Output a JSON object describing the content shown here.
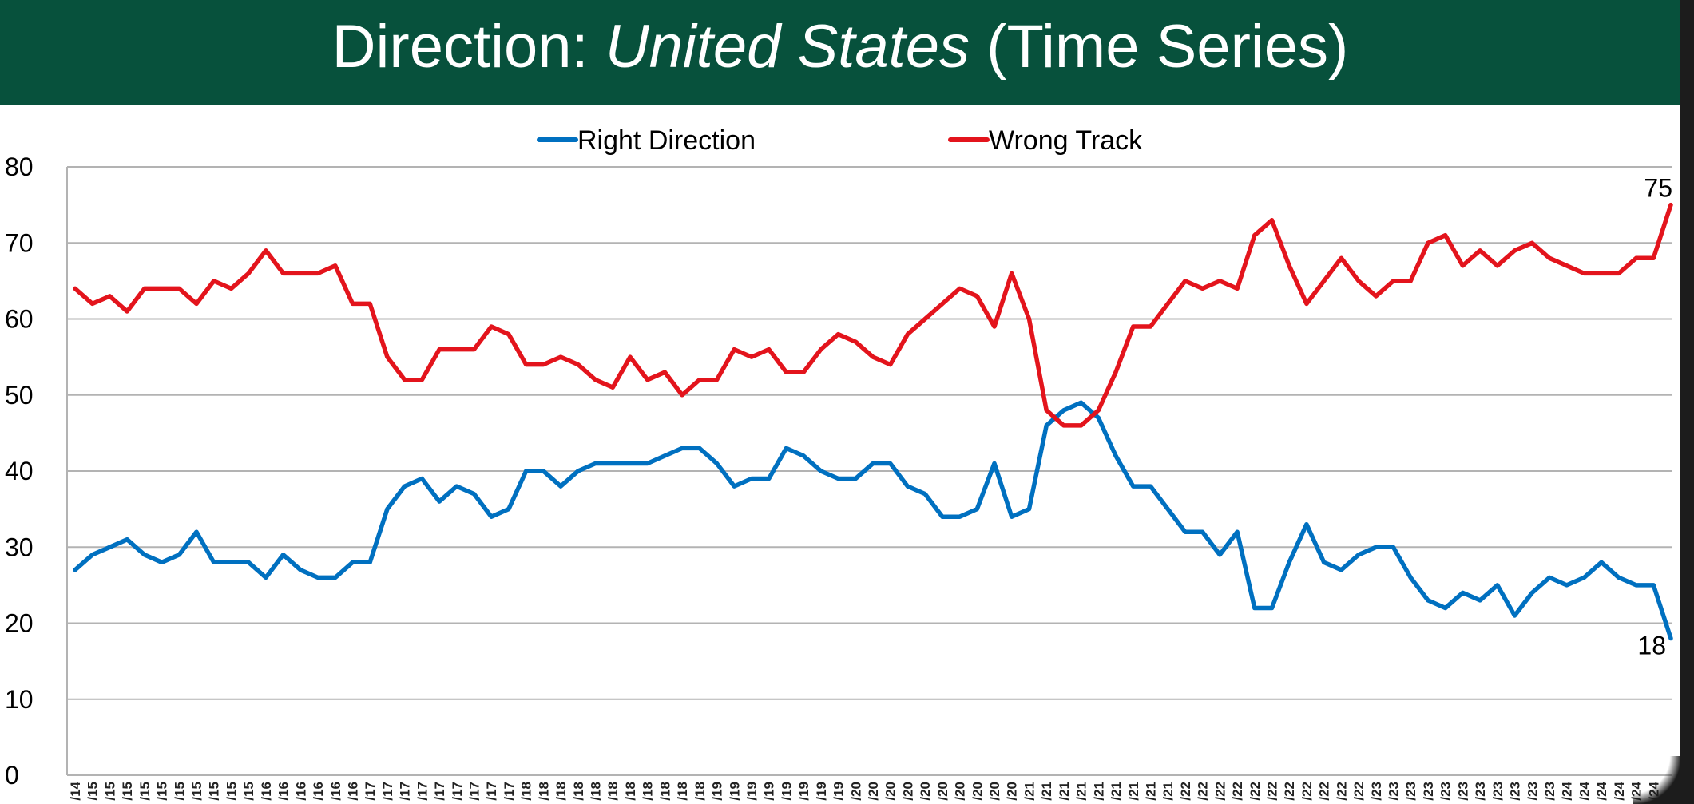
{
  "title": {
    "prefix": "Direction: ",
    "emphasis": "United States",
    "suffix": " (Time Series)"
  },
  "colors": {
    "header_bg": "#07513c",
    "right_direction": "#0070c0",
    "wrong_track": "#e3141c",
    "gridline": "#b3b3b3"
  },
  "chart_data": {
    "type": "line",
    "title": "Direction: United States (Time Series)",
    "xlabel": "",
    "ylabel": "",
    "ylim": [
      0,
      80
    ],
    "yticks": [
      0,
      10,
      20,
      30,
      40,
      50,
      60,
      70,
      80
    ],
    "grid": true,
    "legend_position": "top-center",
    "x_tick_labels_visible": [
      "/14",
      "/15",
      "/15",
      "/15",
      "/15",
      "/15",
      "/15",
      "/15",
      "/15",
      "/15",
      "/15",
      "/16",
      "/16",
      "/16",
      "/16",
      "/16",
      "/16",
      "/17",
      "/17",
      "/17",
      "/17",
      "/17",
      "/17",
      "/17",
      "/17",
      "/17",
      "/18",
      "/18",
      "/18",
      "/18",
      "/18",
      "/18",
      "/18",
      "/18",
      "/18",
      "/18",
      "/18",
      "/19",
      "/19",
      "/19",
      "/19",
      "/19",
      "/19",
      "/19",
      "/19",
      "/20",
      "/20",
      "/20",
      "/20",
      "/20",
      "/20",
      "/20",
      "/20",
      "/20",
      "/20",
      "/21",
      "/21",
      "/21",
      "/21",
      "/21",
      "/21",
      "/21",
      "/21",
      "/21",
      "/22",
      "/22",
      "/22",
      "/22",
      "/22",
      "/22",
      "/22",
      "/22",
      "/22",
      "/22",
      "/22",
      "/23",
      "/23",
      "/23",
      "/23",
      "/23",
      "/23",
      "/23",
      "/23",
      "/23",
      "/23",
      "/23",
      "/24",
      "/24",
      "/24",
      "/24",
      "/24",
      "/24"
    ],
    "series": [
      {
        "name": "Right Direction",
        "values": [
          27,
          29,
          30,
          31,
          29,
          28,
          29,
          32,
          28,
          28,
          28,
          26,
          29,
          27,
          26,
          26,
          28,
          28,
          35,
          38,
          39,
          36,
          38,
          37,
          34,
          35,
          40,
          40,
          38,
          40,
          41,
          41,
          41,
          41,
          42,
          43,
          43,
          41,
          38,
          39,
          39,
          43,
          42,
          40,
          39,
          39,
          41,
          41,
          38,
          37,
          34,
          34,
          35,
          41,
          34,
          35,
          46,
          48,
          49,
          47,
          42,
          38,
          38,
          35,
          32,
          32,
          29,
          32,
          22,
          22,
          28,
          33,
          28,
          27,
          29,
          30,
          30,
          26,
          23,
          22,
          24,
          23,
          25,
          21,
          24,
          26,
          25,
          26,
          28,
          26,
          25,
          25,
          18
        ],
        "end_label": "18"
      },
      {
        "name": "Wrong Track",
        "values": [
          64,
          62,
          63,
          61,
          64,
          64,
          64,
          62,
          65,
          64,
          66,
          69,
          66,
          66,
          66,
          67,
          62,
          62,
          55,
          52,
          52,
          56,
          56,
          56,
          59,
          58,
          54,
          54,
          55,
          54,
          52,
          51,
          55,
          52,
          53,
          50,
          52,
          52,
          56,
          55,
          56,
          53,
          53,
          56,
          58,
          57,
          55,
          54,
          58,
          60,
          62,
          64,
          63,
          59,
          66,
          60,
          48,
          46,
          46,
          48,
          53,
          59,
          59,
          62,
          65,
          64,
          65,
          64,
          71,
          73,
          67,
          62,
          65,
          68,
          65,
          63,
          65,
          65,
          70,
          71,
          67,
          69,
          67,
          69,
          70,
          68,
          67,
          66,
          66,
          66,
          68,
          68,
          75
        ],
        "end_label": "75"
      }
    ]
  }
}
